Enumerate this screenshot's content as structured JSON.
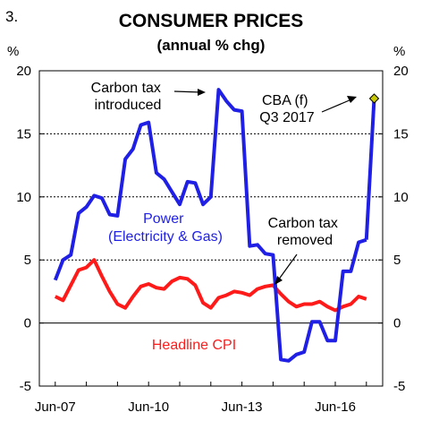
{
  "figure_number": "3.",
  "unit_left": "%",
  "unit_right": "%",
  "chart_data": {
    "type": "line",
    "title": "CONSUMER PRICES",
    "subtitle": "(annual % chg)",
    "ylim": [
      -5,
      20
    ],
    "y_ticks": [
      -5,
      0,
      5,
      10,
      15,
      20
    ],
    "x_tick_labels": [
      "Jun-07",
      "Jun-10",
      "Jun-13",
      "Jun-16"
    ],
    "x_start": "Jun-07",
    "grid": "horizontal dotted",
    "series": [
      {
        "name": "Power (Electricity & Gas)",
        "color": "#1f1fe6",
        "x": [
          "Jun-07",
          "Sep-07",
          "Dec-07",
          "Mar-08",
          "Jun-08",
          "Sep-08",
          "Dec-08",
          "Mar-09",
          "Jun-09",
          "Sep-09",
          "Dec-09",
          "Mar-10",
          "Jun-10",
          "Sep-10",
          "Dec-10",
          "Mar-11",
          "Jun-11",
          "Sep-11",
          "Dec-11",
          "Mar-12",
          "Jun-12",
          "Sep-12",
          "Dec-12",
          "Mar-13",
          "Jun-13",
          "Sep-13",
          "Dec-13",
          "Mar-14",
          "Jun-14",
          "Sep-14",
          "Dec-14",
          "Mar-15",
          "Jun-15",
          "Sep-15",
          "Dec-15",
          "Mar-16",
          "Jun-16",
          "Sep-16",
          "Dec-16",
          "Mar-17",
          "Jun-17"
        ],
        "values": [
          3.4,
          5.0,
          5.4,
          8.7,
          9.2,
          10.1,
          9.9,
          8.6,
          8.5,
          13.0,
          13.8,
          15.7,
          15.9,
          11.9,
          11.4,
          10.4,
          9.4,
          11.2,
          11.1,
          9.4,
          10.0,
          18.5,
          17.6,
          16.9,
          16.8,
          6.1,
          6.2,
          5.5,
          5.4,
          -2.9,
          -3.0,
          -2.5,
          -2.3,
          0.1,
          0.1,
          -1.4,
          -1.4,
          4.1,
          4.1,
          6.4,
          6.6
        ]
      },
      {
        "name": "Headline CPI",
        "color": "#ff1a1a",
        "x": [
          "Jun-07",
          "Sep-07",
          "Dec-07",
          "Mar-08",
          "Jun-08",
          "Sep-08",
          "Dec-08",
          "Mar-09",
          "Jun-09",
          "Sep-09",
          "Dec-09",
          "Mar-10",
          "Jun-10",
          "Sep-10",
          "Dec-10",
          "Mar-11",
          "Jun-11",
          "Sep-11",
          "Dec-11",
          "Mar-12",
          "Jun-12",
          "Sep-12",
          "Dec-12",
          "Mar-13",
          "Jun-13",
          "Sep-13",
          "Dec-13",
          "Mar-14",
          "Jun-14",
          "Sep-14",
          "Dec-14",
          "Mar-15",
          "Jun-15",
          "Sep-15",
          "Dec-15",
          "Mar-16",
          "Jun-16",
          "Sep-16",
          "Dec-16",
          "Mar-17",
          "Jun-17"
        ],
        "values": [
          2.1,
          1.8,
          3.0,
          4.2,
          4.4,
          5.0,
          3.7,
          2.5,
          1.5,
          1.2,
          2.1,
          2.9,
          3.1,
          2.8,
          2.7,
          3.3,
          3.6,
          3.5,
          3.0,
          1.6,
          1.2,
          2.0,
          2.2,
          2.5,
          2.4,
          2.2,
          2.7,
          2.9,
          3.0,
          2.3,
          1.7,
          1.3,
          1.5,
          1.5,
          1.7,
          1.3,
          1.0,
          1.3,
          1.5,
          2.1,
          1.9
        ]
      }
    ],
    "forecast_point": {
      "x": "Sep-17",
      "value": 17.8,
      "color": "#c8c800"
    },
    "annotations": [
      {
        "id": "carbon_tax_introduced",
        "lines": [
          "Carbon tax",
          "introduced"
        ]
      },
      {
        "id": "carbon_tax_removed",
        "lines": [
          "Carbon tax",
          "removed"
        ]
      },
      {
        "id": "cba_forecast",
        "lines": [
          "CBA (f)",
          "Q3 2017"
        ]
      },
      {
        "id": "power_label",
        "lines": [
          "Power",
          "(Electricity & Gas)"
        ],
        "color": "#1f1fe6"
      },
      {
        "id": "cpi_label",
        "lines": [
          "Headline CPI"
        ],
        "color": "#ff1a1a"
      }
    ]
  }
}
